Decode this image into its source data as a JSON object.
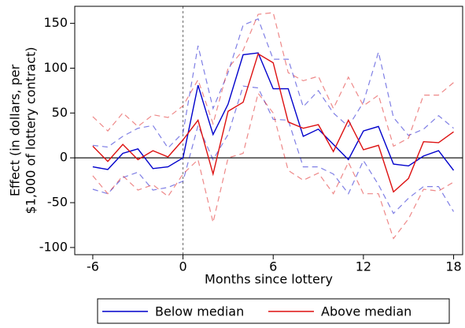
{
  "chart_data": {
    "type": "line",
    "xlabel": "Months since lottery",
    "ylabel": [
      "Effect (in dollars, per",
      "$1,000 of lottery contract)"
    ],
    "x": [
      -6,
      -5,
      -4,
      -3,
      -2,
      -1,
      0,
      1,
      2,
      3,
      4,
      5,
      6,
      7,
      8,
      9,
      10,
      11,
      12,
      13,
      14,
      15,
      16,
      17,
      18
    ],
    "xlim": [
      -7.2,
      18.6
    ],
    "xticks": [
      -6,
      0,
      6,
      12,
      18
    ],
    "ylim": [
      -108,
      169
    ],
    "yticks": [
      -100,
      -50,
      0,
      50,
      100,
      150
    ],
    "xline": 0,
    "yline": 0,
    "series": [
      {
        "name": "Below median",
        "color": "#0000cc",
        "values": [
          -10,
          -13,
          5,
          10,
          -12,
          -10,
          0,
          81,
          26,
          60,
          115,
          117,
          77,
          77,
          24,
          32,
          15,
          -2,
          30,
          35,
          -7,
          -9,
          2,
          8,
          -14
        ],
        "upper": [
          14,
          12,
          24,
          33,
          36,
          11,
          28,
          125,
          55,
          95,
          148,
          155,
          110,
          110,
          57,
          75,
          50,
          35,
          62,
          118,
          45,
          25,
          32,
          47,
          33
        ],
        "lower": [
          -35,
          -40,
          -22,
          -16,
          -36,
          -33,
          -26,
          36,
          -2,
          26,
          80,
          78,
          43,
          42,
          -10,
          -10,
          -18,
          -40,
          -3,
          -30,
          -62,
          -45,
          -32,
          -32,
          -60
        ]
      },
      {
        "name": "Above median",
        "color": "#dd1111",
        "values": [
          13,
          -4,
          15,
          -2,
          8,
          1,
          20,
          42,
          -18,
          52,
          62,
          116,
          106,
          40,
          33,
          37,
          7,
          42,
          9,
          14,
          -38,
          -23,
          18,
          17,
          29
        ],
        "upper": [
          46,
          30,
          50,
          35,
          48,
          45,
          58,
          87,
          38,
          100,
          120,
          160,
          162,
          95,
          86,
          91,
          55,
          90,
          58,
          70,
          13,
          22,
          70,
          70,
          84
        ],
        "lower": [
          -20,
          -40,
          -20,
          -36,
          -30,
          -43,
          -18,
          -2,
          -72,
          0,
          5,
          72,
          50,
          -14,
          -25,
          -17,
          -40,
          -5,
          -40,
          -40,
          -90,
          -68,
          -35,
          -37,
          -27
        ]
      }
    ]
  }
}
